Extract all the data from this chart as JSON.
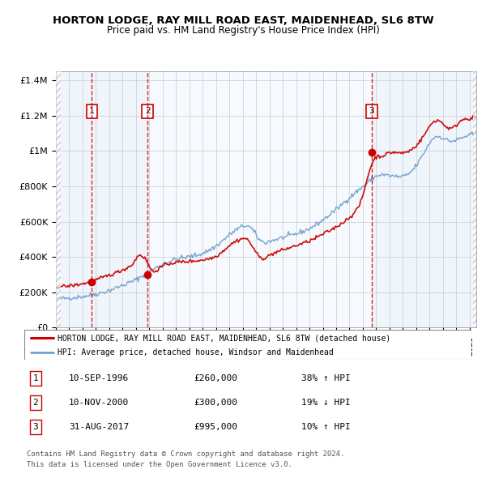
{
  "title": "HORTON LODGE, RAY MILL ROAD EAST, MAIDENHEAD, SL6 8TW",
  "subtitle": "Price paid vs. HM Land Registry's House Price Index (HPI)",
  "transactions": [
    {
      "num": 1,
      "date_str": "10-SEP-1996",
      "date_num": 1996.69,
      "price": 260000,
      "pct": "38%",
      "dir": "↑"
    },
    {
      "num": 2,
      "date_str": "10-NOV-2000",
      "date_num": 2000.86,
      "price": 300000,
      "pct": "19%",
      "dir": "↓"
    },
    {
      "num": 3,
      "date_str": "31-AUG-2017",
      "date_num": 2017.67,
      "price": 995000,
      "pct": "10%",
      "dir": "↑"
    }
  ],
  "legend_line1": "HORTON LODGE, RAY MILL ROAD EAST, MAIDENHEAD, SL6 8TW (detached house)",
  "legend_line2": "HPI: Average price, detached house, Windsor and Maidenhead",
  "footer1": "Contains HM Land Registry data © Crown copyright and database right 2024.",
  "footer2": "This data is licensed under the Open Government Licence v3.0.",
  "red_color": "#cc0000",
  "blue_color": "#6699cc",
  "grid_color": "#cccccc",
  "ylim": [
    0,
    1450000
  ],
  "xlim_start": 1994.0,
  "xlim_end": 2025.5,
  "yticks": [
    0,
    200000,
    400000,
    600000,
    800000,
    1000000,
    1200000,
    1400000
  ],
  "ytick_labels": [
    "£0",
    "£200K",
    "£400K",
    "£600K",
    "£800K",
    "£1M",
    "£1.2M",
    "£1.4M"
  ],
  "hpi_anchors_t": [
    1994.0,
    1995.0,
    1996.0,
    1997.0,
    1998.0,
    1999.0,
    2000.0,
    2001.0,
    2002.0,
    2003.0,
    2004.0,
    2005.0,
    2006.0,
    2007.0,
    2007.8,
    2008.5,
    2009.3,
    2010.0,
    2011.0,
    2012.0,
    2013.0,
    2014.0,
    2015.0,
    2016.0,
    2017.0,
    2017.5,
    2018.0,
    2019.0,
    2020.0,
    2020.5,
    2021.0,
    2021.5,
    2022.0,
    2022.5,
    2023.0,
    2023.5,
    2024.0,
    2024.5,
    2025.0,
    2025.6
  ],
  "hpi_anchors_v": [
    160000,
    168000,
    175000,
    190000,
    210000,
    240000,
    270000,
    320000,
    360000,
    390000,
    400000,
    420000,
    460000,
    530000,
    570000,
    590000,
    470000,
    490000,
    510000,
    530000,
    560000,
    610000,
    670000,
    740000,
    800000,
    830000,
    870000,
    860000,
    850000,
    870000,
    920000,
    980000,
    1060000,
    1100000,
    1070000,
    1050000,
    1060000,
    1080000,
    1090000,
    1100000
  ],
  "red_anchors_t": [
    1994.0,
    1995.0,
    1996.0,
    1996.69,
    1997.5,
    1998.5,
    1999.5,
    2000.0,
    2000.5,
    2000.86,
    2001.5,
    2002.0,
    2003.0,
    2004.0,
    2005.0,
    2006.0,
    2007.0,
    2007.8,
    2008.5,
    2009.0,
    2009.5,
    2010.0,
    2011.0,
    2012.0,
    2013.0,
    2014.0,
    2015.0,
    2016.0,
    2016.5,
    2017.0,
    2017.67,
    2018.0,
    2018.5,
    2019.0,
    2019.5,
    2020.0,
    2020.5,
    2021.0,
    2021.5,
    2022.0,
    2022.5,
    2023.0,
    2023.5,
    2024.0,
    2024.5,
    2025.0,
    2025.6
  ],
  "red_anchors_v": [
    230000,
    235000,
    248000,
    260000,
    285000,
    310000,
    345000,
    370000,
    490000,
    300000,
    320000,
    355000,
    370000,
    375000,
    382000,
    400000,
    470000,
    505000,
    510000,
    395000,
    380000,
    415000,
    440000,
    465000,
    490000,
    530000,
    570000,
    625000,
    660000,
    725000,
    995000,
    960000,
    970000,
    1000000,
    990000,
    985000,
    1000000,
    1030000,
    1080000,
    1150000,
    1195000,
    1155000,
    1105000,
    1150000,
    1195000,
    1180000,
    1200000
  ]
}
